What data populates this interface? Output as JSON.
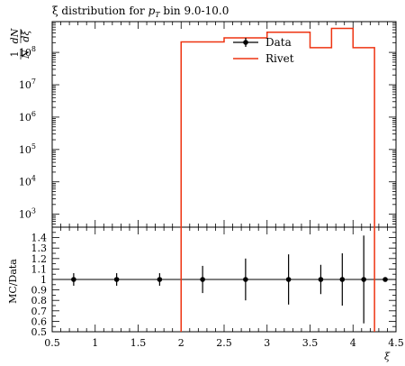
{
  "chart_data": {
    "type": "line",
    "title_prefix": "ξ distribution for ",
    "title_var": "p",
    "title_sub": "T",
    "title_suffix": " bin 9.0-10.0",
    "xlabel": "ξ",
    "ylabel_main": "1/N_jet dN/dξ",
    "ylabel_ratio": "MC/Data",
    "xlim": [
      0.5,
      4.5
    ],
    "main_ylim_log10": [
      2.6,
      8.95
    ],
    "ratio_ylim": [
      0.5,
      1.5
    ],
    "main_yticks": [
      {
        "exp": 3,
        "label": "10",
        "sup": "3"
      },
      {
        "exp": 4,
        "label": "10",
        "sup": "4"
      },
      {
        "exp": 5,
        "label": "10",
        "sup": "5"
      },
      {
        "exp": 6,
        "label": "10",
        "sup": "6"
      },
      {
        "exp": 7,
        "label": "10",
        "sup": "7"
      },
      {
        "exp": 8,
        "label": "10",
        "sup": "8"
      }
    ],
    "xticks": [
      {
        "v": 0.5,
        "label": "0.5"
      },
      {
        "v": 1.0,
        "label": "1"
      },
      {
        "v": 1.5,
        "label": "1.5"
      },
      {
        "v": 2.0,
        "label": "2"
      },
      {
        "v": 2.5,
        "label": "2.5"
      },
      {
        "v": 3.0,
        "label": "3"
      },
      {
        "v": 3.5,
        "label": "3.5"
      },
      {
        "v": 4.0,
        "label": "4"
      },
      {
        "v": 4.5,
        "label": "4.5"
      }
    ],
    "ratio_yticks": [
      {
        "v": 0.5,
        "label": "0.5"
      },
      {
        "v": 0.6,
        "label": "0.6"
      },
      {
        "v": 0.7,
        "label": "0.7"
      },
      {
        "v": 0.8,
        "label": "0.8"
      },
      {
        "v": 0.9,
        "label": "0.9"
      },
      {
        "v": 1.0,
        "label": "1"
      },
      {
        "v": 1.1,
        "label": "1.1"
      },
      {
        "v": 1.2,
        "label": "1.2"
      },
      {
        "v": 1.3,
        "label": "1.3"
      },
      {
        "v": 1.4,
        "label": "1.4"
      }
    ],
    "legend_placement": "top-right",
    "series": [
      {
        "name": "Data",
        "color": "#000000",
        "ratio_points": [
          {
            "x": 0.75,
            "y": 1.0,
            "err": 0.06
          },
          {
            "x": 1.25,
            "y": 1.0,
            "err": 0.06
          },
          {
            "x": 1.75,
            "y": 1.0,
            "err": 0.06
          },
          {
            "x": 2.25,
            "y": 1.0,
            "err": 0.13
          },
          {
            "x": 2.75,
            "y": 1.0,
            "err": 0.2
          },
          {
            "x": 3.25,
            "y": 1.0,
            "err": 0.24
          },
          {
            "x": 3.625,
            "y": 1.0,
            "err": 0.14
          },
          {
            "x": 3.875,
            "y": 1.0,
            "err": 0.25
          },
          {
            "x": 4.125,
            "y": 1.0,
            "err": 0.42
          },
          {
            "x": 4.375,
            "y": 1.0,
            "err": 0.0
          }
        ]
      },
      {
        "name": "Rivet",
        "color": "#EE3311",
        "histogram": [
          {
            "x0": 2.0,
            "x1": 2.5,
            "y": 210000000.0
          },
          {
            "x0": 2.5,
            "x1": 3.0,
            "y": 280000000.0
          },
          {
            "x0": 3.0,
            "x1": 3.5,
            "y": 420000000.0
          },
          {
            "x0": 3.5,
            "x1": 3.75,
            "y": 140000000.0
          },
          {
            "x0": 3.75,
            "x1": 4.0,
            "y": 550000000.0
          },
          {
            "x0": 4.0,
            "x1": 4.25,
            "y": 140000000.0
          }
        ],
        "ratio_edges": [
          2.0,
          4.25
        ]
      }
    ]
  }
}
